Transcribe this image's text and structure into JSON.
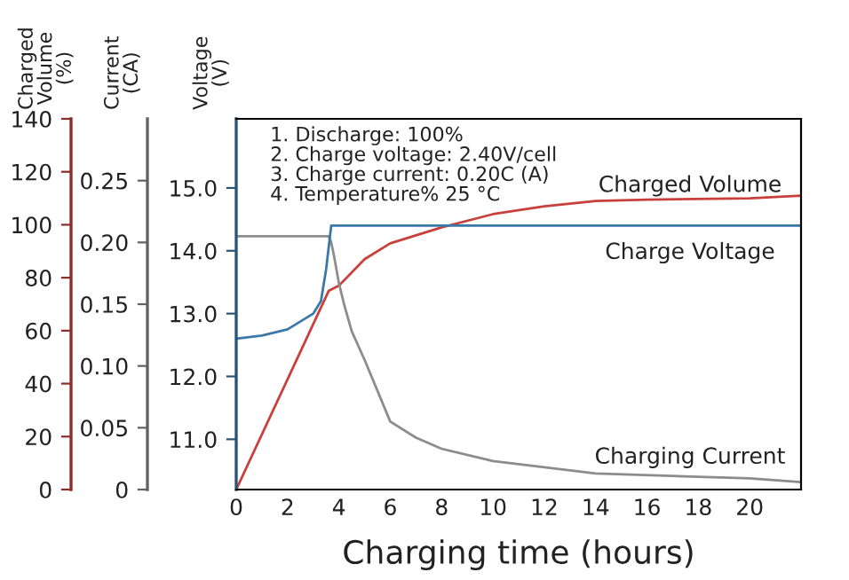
{
  "chart_data": {
    "type": "line",
    "xlabel": "Charging time (hours)",
    "ylabel": "Voltage (V)",
    "y3label": "Charged Volume (%)",
    "y2label": "Current (CA)",
    "xlim": [
      0,
      22
    ],
    "xticks": [
      0,
      2,
      4,
      6,
      8,
      10,
      12,
      14,
      16,
      18,
      20
    ],
    "ylim": [
      10.2,
      16.1
    ],
    "yticks": [
      {
        "value": 11,
        "label": "11.0"
      },
      {
        "value": 12,
        "label": "12.0"
      },
      {
        "value": 13,
        "label": "13.0"
      },
      {
        "value": 14,
        "label": "14.0"
      },
      {
        "value": 15,
        "label": "15.0"
      }
    ],
    "y3lim": [
      0,
      140
    ],
    "y3ticks": [
      0,
      20,
      40,
      60,
      80,
      100,
      120,
      140
    ],
    "y2lim": [
      0,
      0.3
    ],
    "y2ticks": [
      0,
      0.05,
      {
        "value": 0.1,
        "label": "0.10"
      },
      0.15,
      {
        "value": 0.2,
        "label": "0.20"
      },
      0.25
    ],
    "series": [
      {
        "name": "Charged Volume",
        "color": "#c8403c",
        "axis": "y3",
        "x": [
          0,
          3.6,
          4,
          5,
          6,
          8,
          10,
          12,
          14,
          16,
          20,
          22
        ],
        "values": [
          0,
          75,
          77,
          87,
          93,
          99,
          104,
          107,
          109,
          109.5,
          110,
          111
        ]
      },
      {
        "name": "Charge Voltage",
        "color": "#3a78a8",
        "axis": "y",
        "x": [
          0,
          1,
          2,
          3,
          3.3,
          3.5,
          3.7,
          22
        ],
        "values": [
          12.6,
          12.65,
          12.75,
          13.0,
          13.2,
          13.7,
          14.4,
          14.4
        ]
      },
      {
        "name": "Charging Current",
        "color": "#8c8c8c",
        "axis": "y2",
        "x": [
          0,
          3.6,
          3.7,
          3.8,
          4,
          4.2,
          4.5,
          5,
          6,
          7,
          8,
          10,
          14,
          20,
          22
        ],
        "values": [
          0.205,
          0.205,
          0.2,
          0.19,
          0.167,
          0.15,
          0.128,
          0.105,
          0.055,
          0.042,
          0.033,
          0.023,
          0.013,
          0.009,
          0.006
        ]
      }
    ],
    "annotations": [
      "1. Discharge: 100%",
      "2. Charge voltage: 2.40V/cell",
      "3. Charge current: 0.20C (A)",
      "4. Temperature% 25 °C"
    ],
    "grid": false,
    "legend": false
  }
}
